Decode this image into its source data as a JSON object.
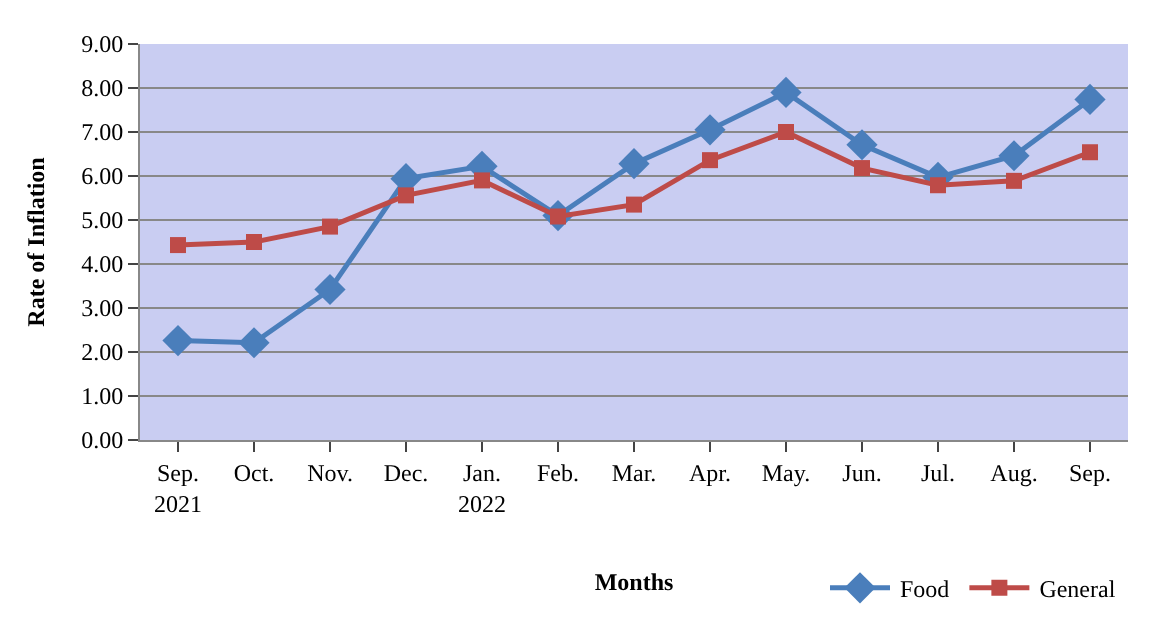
{
  "chart_data": {
    "type": "line",
    "xlabel": "Months",
    "ylabel": "Rate of Inflation",
    "categories": [
      "Sep.\n2021",
      "Oct.",
      "Nov.",
      "Dec.",
      "Jan.\n2022",
      "Feb.",
      "Mar.",
      "Apr.",
      "May.",
      "Jun.",
      "Jul.",
      "Aug.",
      "Sep."
    ],
    "series": [
      {
        "name": "Food",
        "color": "#4a7ebb",
        "marker": "diamond",
        "values": [
          2.26,
          2.21,
          3.42,
          5.94,
          6.22,
          5.1,
          6.28,
          7.05,
          7.9,
          6.71,
          5.97,
          6.46,
          7.74
        ]
      },
      {
        "name": "General",
        "color": "#be4b48",
        "marker": "square",
        "values": [
          4.43,
          4.5,
          4.85,
          5.56,
          5.9,
          5.08,
          5.35,
          6.36,
          7.0,
          6.18,
          5.79,
          5.89,
          6.54
        ]
      }
    ],
    "ylim": [
      0,
      9
    ],
    "yticks": [
      {
        "value": 0,
        "label": "0.00"
      },
      {
        "value": 1,
        "label": "1.00"
      },
      {
        "value": 2,
        "label": "2.00"
      },
      {
        "value": 3,
        "label": "3.00"
      },
      {
        "value": 4,
        "label": "4.00"
      },
      {
        "value": 5,
        "label": "5.00"
      },
      {
        "value": 6,
        "label": "6.00"
      },
      {
        "value": 7,
        "label": "7.00"
      },
      {
        "value": 8,
        "label": "8.00"
      },
      {
        "value": 9,
        "label": "9.00"
      }
    ],
    "grid": "y",
    "legend": "bottom right",
    "line_style": "solid"
  }
}
